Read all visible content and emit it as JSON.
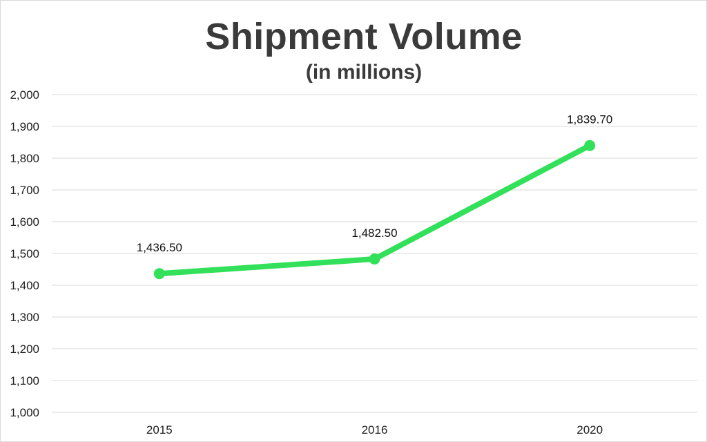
{
  "chart_data": {
    "type": "line",
    "title": "Shipment Volume",
    "subtitle": "(in millions)",
    "xlabel": "",
    "ylabel": "",
    "categories": [
      "2015",
      "2016",
      "2020"
    ],
    "series": [
      {
        "values": [
          1436.5,
          1482.5,
          1839.7
        ],
        "color": "#33e05a"
      }
    ],
    "data_labels": [
      "1,436.50",
      "1,482.50",
      "1,839.70"
    ],
    "ylim": [
      1000,
      2000
    ],
    "yticks": [
      1000,
      1100,
      1200,
      1300,
      1400,
      1500,
      1600,
      1700,
      1800,
      1900,
      2000
    ],
    "ytick_labels": [
      "1,000",
      "1,100",
      "1,200",
      "1,300",
      "1,400",
      "1,500",
      "1,600",
      "1,700",
      "1,800",
      "1,900",
      "2,000"
    ],
    "grid": true,
    "legend": "none"
  }
}
